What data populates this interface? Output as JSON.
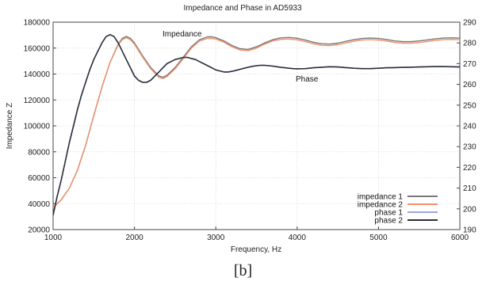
{
  "caption": "[b]",
  "chart_data": {
    "type": "line",
    "title": "Impedance and Phase in AD5933",
    "xlabel": "Frequency, Hz",
    "ylabel": "Impedance Z",
    "xlim": [
      1000,
      6000
    ],
    "ylim": [
      20000,
      180000
    ],
    "y2lim": [
      190,
      290
    ],
    "xticks": [
      1000,
      2000,
      3000,
      4000,
      5000,
      6000
    ],
    "yticks": [
      20000,
      40000,
      60000,
      80000,
      100000,
      120000,
      140000,
      160000,
      180000
    ],
    "y2ticks": [
      190,
      200,
      210,
      220,
      230,
      240,
      250,
      260,
      270,
      280,
      290
    ],
    "grid": true,
    "legend_position": "bottom-right",
    "annotations": [
      {
        "text": "Impedance",
        "x": 2550,
        "y": 170500
      },
      {
        "text": "Phase",
        "x": 3850,
        "y": 141800
      }
    ],
    "series": [
      {
        "name": "impedance 1",
        "axis": "left",
        "color": "#777777",
        "x": [
          1000,
          1100,
          1200,
          1300,
          1400,
          1500,
          1600,
          1700,
          1800,
          1850,
          1900,
          1950,
          2000,
          2050,
          2100,
          2200,
          2300,
          2350,
          2400,
          2500,
          2600,
          2700,
          2800,
          2900,
          2950,
          3000,
          3100,
          3200,
          3300,
          3400,
          3500,
          3600,
          3700,
          3800,
          3900,
          4000,
          4100,
          4200,
          4300,
          4400,
          4500,
          4600,
          4700,
          4800,
          4900,
          5000,
          5100,
          5200,
          5300,
          5400,
          5500,
          5600,
          5700,
          5800,
          5900,
          6000
        ],
        "y": [
          37000,
          43000,
          52000,
          66000,
          85000,
          108000,
          130000,
          149000,
          163000,
          167500,
          169000,
          167500,
          164000,
          159000,
          154000,
          145000,
          138500,
          137500,
          139000,
          145000,
          153000,
          161000,
          166500,
          168700,
          168700,
          168000,
          165500,
          162000,
          159500,
          159000,
          161000,
          164000,
          166500,
          167900,
          168200,
          167600,
          166200,
          164500,
          163300,
          163100,
          163800,
          165200,
          166500,
          167400,
          167700,
          167400,
          166600,
          165500,
          165000,
          165000,
          165500,
          166300,
          167100,
          167700,
          167900,
          167700
        ]
      },
      {
        "name": "impedance 2",
        "axis": "left",
        "color": "#f0906a",
        "x": [
          1000,
          1100,
          1200,
          1300,
          1400,
          1500,
          1600,
          1700,
          1800,
          1850,
          1900,
          1950,
          2000,
          2050,
          2100,
          2200,
          2300,
          2350,
          2400,
          2500,
          2600,
          2700,
          2800,
          2900,
          2950,
          3000,
          3100,
          3200,
          3300,
          3400,
          3500,
          3600,
          3700,
          3800,
          3900,
          4000,
          4100,
          4200,
          4300,
          4400,
          4500,
          4600,
          4700,
          4800,
          4900,
          5000,
          5100,
          5200,
          5300,
          5400,
          5500,
          5600,
          5700,
          5800,
          5900,
          6000
        ],
        "y": [
          37000,
          43000,
          52000,
          66000,
          85000,
          108000,
          130000,
          149000,
          162500,
          166500,
          168000,
          166500,
          163000,
          158000,
          153000,
          144000,
          137500,
          136500,
          138000,
          144000,
          152000,
          160000,
          165500,
          167500,
          167500,
          167000,
          164500,
          161000,
          158500,
          158000,
          160000,
          163000,
          165500,
          166700,
          167000,
          166400,
          165000,
          163300,
          162100,
          161900,
          162600,
          164000,
          165300,
          166200,
          166500,
          166200,
          165400,
          164300,
          163800,
          163800,
          164300,
          165100,
          165900,
          166500,
          166700,
          166500
        ]
      },
      {
        "name": "phase 1",
        "axis": "right",
        "color": "#9aa8d8",
        "x": [
          1000,
          1050,
          1100,
          1150,
          1200,
          1250,
          1300,
          1350,
          1400,
          1450,
          1500,
          1550,
          1600,
          1650,
          1700,
          1750,
          1800,
          1850,
          1900,
          1950,
          2000,
          2050,
          2100,
          2150,
          2200,
          2250,
          2300,
          2350,
          2400,
          2450,
          2500,
          2550,
          2600,
          2650,
          2700,
          2750,
          2800,
          2850,
          2900,
          2950,
          3000,
          3050,
          3100,
          3150,
          3200,
          3250,
          3300,
          3350,
          3400,
          3450,
          3500,
          3550,
          3600,
          3650,
          3700,
          3750,
          3800,
          3850,
          3900,
          3950,
          4000,
          4100,
          4200,
          4300,
          4400,
          4500,
          4600,
          4700,
          4800,
          4900,
          5000,
          5100,
          5200,
          5300,
          5400,
          5500,
          5600,
          5700,
          5800,
          5900,
          6000
        ],
        "y": [
          197,
          206,
          214,
          223,
          232,
          240,
          248,
          255,
          261,
          267,
          272,
          276,
          280,
          283,
          284,
          283,
          280,
          276,
          272,
          268,
          264,
          262,
          261,
          261,
          262,
          264,
          266,
          268,
          270,
          271,
          272,
          272.5,
          273,
          273,
          272.5,
          272,
          271,
          270,
          269,
          268,
          267,
          266.5,
          266,
          266,
          266.3,
          266.8,
          267.3,
          267.8,
          268.3,
          268.7,
          269,
          269.2,
          269.2,
          269,
          268.8,
          268.5,
          268.2,
          268,
          267.8,
          267.6,
          267.5,
          267.6,
          268,
          268.3,
          268.5,
          268.4,
          268.1,
          267.8,
          267.6,
          267.6,
          267.8,
          268,
          268.1,
          268.2,
          268.3,
          268.4,
          268.5,
          268.6,
          268.6,
          268.5,
          268.4
        ]
      },
      {
        "name": "phase 2",
        "axis": "right",
        "color": "#2a2f3a",
        "x": [
          1000,
          1050,
          1100,
          1150,
          1200,
          1250,
          1300,
          1350,
          1400,
          1450,
          1500,
          1550,
          1600,
          1650,
          1700,
          1750,
          1800,
          1850,
          1900,
          1950,
          2000,
          2050,
          2100,
          2150,
          2200,
          2250,
          2300,
          2350,
          2400,
          2450,
          2500,
          2550,
          2600,
          2650,
          2700,
          2750,
          2800,
          2850,
          2900,
          2950,
          3000,
          3050,
          3100,
          3150,
          3200,
          3250,
          3300,
          3350,
          3400,
          3450,
          3500,
          3550,
          3600,
          3650,
          3700,
          3750,
          3800,
          3850,
          3900,
          3950,
          4000,
          4100,
          4200,
          4300,
          4400,
          4500,
          4600,
          4700,
          4800,
          4900,
          5000,
          5100,
          5200,
          5300,
          5400,
          5500,
          5600,
          5700,
          5800,
          5900,
          6000
        ],
        "y": [
          197,
          206,
          214,
          223,
          232,
          240,
          248,
          255,
          261,
          267,
          272,
          276,
          280,
          283,
          284,
          283,
          280,
          276,
          272,
          268,
          264,
          262,
          261,
          261,
          262,
          264,
          266,
          268,
          270,
          271,
          272,
          272.5,
          273,
          273,
          272.5,
          272,
          271,
          270,
          269,
          268,
          267,
          266.5,
          266,
          266,
          266.3,
          266.8,
          267.3,
          267.8,
          268.3,
          268.7,
          269,
          269.2,
          269.2,
          269,
          268.8,
          268.5,
          268.2,
          268,
          267.8,
          267.6,
          267.5,
          267.6,
          268,
          268.3,
          268.5,
          268.4,
          268.1,
          267.8,
          267.6,
          267.6,
          267.8,
          268,
          268.1,
          268.2,
          268.3,
          268.4,
          268.5,
          268.6,
          268.6,
          268.5,
          268.4
        ]
      }
    ]
  }
}
